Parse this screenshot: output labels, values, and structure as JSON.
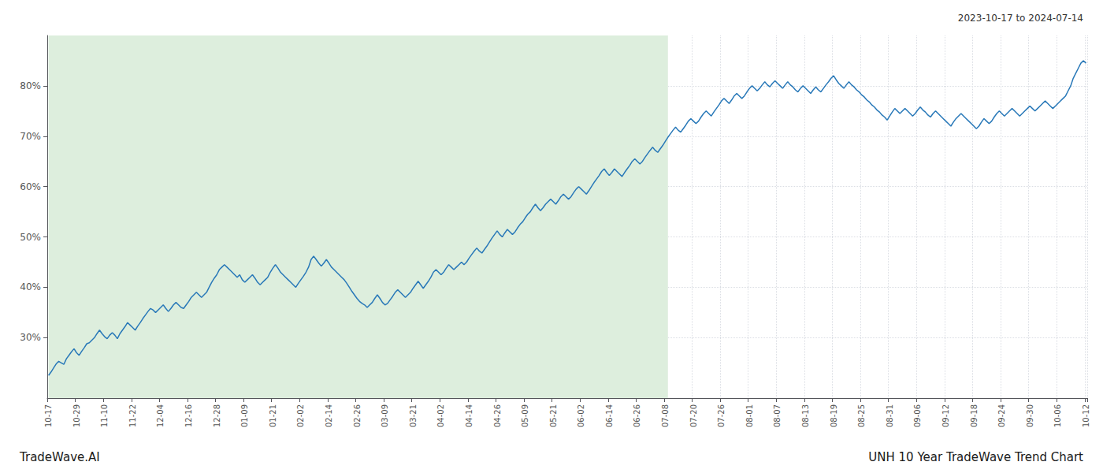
{
  "chart_data": {
    "type": "line",
    "title": "2023-10-17 to 2024-07-14",
    "annotations": [
      "TradeWave.AI",
      "UNH 10 Year TradeWave Trend Chart"
    ],
    "color": "#2878b8",
    "grid": true,
    "shaded_region": {
      "x": [
        0,
        243
      ],
      "color": "#ddeedd"
    },
    "ylim": [
      18,
      90
    ],
    "yticks": [
      {
        "value": 30,
        "label": "30%"
      },
      {
        "value": 40,
        "label": "40%"
      },
      {
        "value": 50,
        "label": "50%"
      },
      {
        "value": 60,
        "label": "60%"
      },
      {
        "value": 70,
        "label": "70%"
      },
      {
        "value": 80,
        "label": "80%"
      }
    ],
    "categories": [
      "10-17",
      null,
      null,
      null,
      null,
      null,
      null,
      null,
      null,
      null,
      null,
      "10-29",
      null,
      null,
      null,
      null,
      null,
      null,
      null,
      null,
      null,
      null,
      "11-10",
      null,
      null,
      null,
      null,
      null,
      null,
      null,
      null,
      null,
      null,
      "11-22",
      null,
      null,
      null,
      null,
      null,
      null,
      null,
      null,
      null,
      null,
      "12-04",
      null,
      null,
      null,
      null,
      null,
      null,
      null,
      null,
      null,
      null,
      "12-16",
      null,
      null,
      null,
      null,
      null,
      null,
      null,
      null,
      null,
      null,
      "12-28",
      null,
      null,
      null,
      null,
      null,
      null,
      null,
      null,
      null,
      null,
      "01-09",
      null,
      null,
      null,
      null,
      null,
      null,
      null,
      null,
      null,
      null,
      "01-21",
      null,
      null,
      null,
      null,
      null,
      null,
      null,
      null,
      null,
      null,
      "02-02",
      null,
      null,
      null,
      null,
      null,
      null,
      null,
      null,
      null,
      null,
      "02-14",
      null,
      null,
      null,
      null,
      null,
      null,
      null,
      null,
      null,
      null,
      "02-26",
      null,
      null,
      null,
      null,
      null,
      null,
      null,
      null,
      null,
      null,
      "03-09",
      null,
      null,
      null,
      null,
      null,
      null,
      null,
      null,
      null,
      null,
      "03-21",
      null,
      null,
      null,
      null,
      null,
      null,
      null,
      null,
      null,
      null,
      "04-02",
      null,
      null,
      null,
      null,
      null,
      null,
      null,
      null,
      null,
      null,
      "04-14",
      null,
      null,
      null,
      null,
      null,
      null,
      null,
      null,
      null,
      null,
      "04-26",
      null,
      null,
      null,
      null,
      null,
      null,
      null,
      null,
      null,
      null,
      "05-09",
      null,
      null,
      null,
      null,
      null,
      null,
      null,
      null,
      null,
      null,
      "05-21",
      null,
      null,
      null,
      null,
      null,
      null,
      null,
      null,
      null,
      null,
      "06-02",
      null,
      null,
      null,
      null,
      null,
      null,
      null,
      null,
      null,
      null,
      "06-14",
      null,
      null,
      null,
      null,
      null,
      null,
      null,
      null,
      null,
      null,
      "06-26",
      null,
      null,
      null,
      null,
      null,
      null,
      null,
      null,
      null,
      null,
      "07-08",
      null,
      null,
      null,
      null,
      null,
      null,
      null,
      null,
      null,
      null,
      "07-20",
      null,
      null,
      null,
      null,
      null,
      null,
      null,
      null,
      null,
      null,
      "07-26",
      null,
      null,
      null,
      null,
      null,
      null,
      null,
      null,
      null,
      null,
      "08-01",
      null,
      null,
      null,
      null,
      null,
      null,
      null,
      null,
      null,
      null,
      "08-07",
      null,
      null,
      null,
      null,
      null,
      null,
      null,
      null,
      null,
      null,
      "08-13",
      null,
      null,
      null,
      null,
      null,
      null,
      null,
      null,
      null,
      null,
      "08-19",
      null,
      null,
      null,
      null,
      null,
      null,
      null,
      null,
      null,
      null,
      "08-25",
      null,
      null,
      null,
      null,
      null,
      null,
      null,
      null,
      null,
      null,
      "08-31",
      null,
      null,
      null,
      null,
      null,
      null,
      null,
      null,
      null,
      null,
      "09-06",
      null,
      null,
      null,
      null,
      null,
      null,
      null,
      null,
      null,
      null,
      "09-12",
      null,
      null,
      null,
      null,
      null,
      null,
      null,
      null,
      null,
      null,
      "09-18",
      null,
      null,
      null,
      null,
      null,
      null,
      null,
      null,
      null,
      null,
      "09-24",
      null,
      null,
      null,
      null,
      null,
      null,
      null,
      null,
      null,
      null,
      "09-30",
      null,
      null,
      null,
      null,
      null,
      null,
      null,
      null,
      null,
      null,
      "10-06",
      null,
      null,
      null,
      null,
      null,
      null,
      null,
      null,
      null,
      null,
      "10-12"
    ],
    "values": [
      22.5,
      23.2,
      24.0,
      24.8,
      25.3,
      25.0,
      24.7,
      25.8,
      26.5,
      27.2,
      27.8,
      27.0,
      26.5,
      27.3,
      28.0,
      28.8,
      29.0,
      29.5,
      30.0,
      30.8,
      31.5,
      30.8,
      30.2,
      29.8,
      30.5,
      31.0,
      30.5,
      29.8,
      30.8,
      31.5,
      32.2,
      33.0,
      32.5,
      32.0,
      31.5,
      32.3,
      33.0,
      33.8,
      34.5,
      35.2,
      35.8,
      35.5,
      35.0,
      35.5,
      36.0,
      36.5,
      35.8,
      35.2,
      35.8,
      36.5,
      37.0,
      36.5,
      36.0,
      35.8,
      36.5,
      37.2,
      38.0,
      38.5,
      39.0,
      38.5,
      38.0,
      38.5,
      39.0,
      40.0,
      41.0,
      41.8,
      42.5,
      43.5,
      44.0,
      44.5,
      44.0,
      43.5,
      43.0,
      42.5,
      42.0,
      42.5,
      41.5,
      41.0,
      41.5,
      42.0,
      42.5,
      41.8,
      41.0,
      40.5,
      41.0,
      41.5,
      42.0,
      43.0,
      43.8,
      44.5,
      43.8,
      43.0,
      42.5,
      42.0,
      41.5,
      41.0,
      40.5,
      40.0,
      40.8,
      41.5,
      42.2,
      43.0,
      44.0,
      45.5,
      46.2,
      45.5,
      44.8,
      44.2,
      44.8,
      45.5,
      44.8,
      44.0,
      43.5,
      43.0,
      42.5,
      42.0,
      41.5,
      40.8,
      40.0,
      39.2,
      38.5,
      37.8,
      37.2,
      36.8,
      36.5,
      36.0,
      36.5,
      37.0,
      37.8,
      38.5,
      37.8,
      37.0,
      36.5,
      36.8,
      37.5,
      38.2,
      39.0,
      39.5,
      39.0,
      38.5,
      38.0,
      38.5,
      39.0,
      39.8,
      40.5,
      41.2,
      40.5,
      39.8,
      40.5,
      41.2,
      42.0,
      43.0,
      43.5,
      43.0,
      42.5,
      43.0,
      43.8,
      44.5,
      44.0,
      43.5,
      44.0,
      44.5,
      45.0,
      44.5,
      45.0,
      45.8,
      46.5,
      47.2,
      47.8,
      47.2,
      46.8,
      47.5,
      48.2,
      49.0,
      49.8,
      50.5,
      51.2,
      50.5,
      50.0,
      50.8,
      51.5,
      51.0,
      50.5,
      51.0,
      51.8,
      52.5,
      53.0,
      53.8,
      54.5,
      55.0,
      55.8,
      56.5,
      55.8,
      55.2,
      55.8,
      56.5,
      57.0,
      57.5,
      57.0,
      56.5,
      57.2,
      58.0,
      58.5,
      58.0,
      57.5,
      58.0,
      58.8,
      59.5,
      60.0,
      59.5,
      59.0,
      58.5,
      59.2,
      60.0,
      60.8,
      61.5,
      62.2,
      63.0,
      63.5,
      62.8,
      62.2,
      62.8,
      63.5,
      63.0,
      62.5,
      62.0,
      62.8,
      63.5,
      64.2,
      65.0,
      65.5,
      65.0,
      64.5,
      65.0,
      65.8,
      66.5,
      67.2,
      67.8,
      67.2,
      66.8,
      67.5,
      68.2,
      69.0,
      69.8,
      70.5,
      71.2,
      71.8,
      71.2,
      70.8,
      71.5,
      72.2,
      73.0,
      73.5,
      73.0,
      72.5,
      73.0,
      73.8,
      74.5,
      75.0,
      74.5,
      74.0,
      74.8,
      75.5,
      76.2,
      77.0,
      77.5,
      77.0,
      76.5,
      77.2,
      78.0,
      78.5,
      78.0,
      77.5,
      78.0,
      78.8,
      79.5,
      80.0,
      79.5,
      79.0,
      79.5,
      80.2,
      80.8,
      80.2,
      79.8,
      80.5,
      81.0,
      80.5,
      80.0,
      79.5,
      80.2,
      80.8,
      80.2,
      79.8,
      79.2,
      78.8,
      79.5,
      80.0,
      79.5,
      79.0,
      78.5,
      79.2,
      79.8,
      79.2,
      78.8,
      79.5,
      80.2,
      80.8,
      81.5,
      82.0,
      81.2,
      80.5,
      80.0,
      79.5,
      80.2,
      80.8,
      80.2,
      79.8,
      79.2,
      78.8,
      78.2,
      77.8,
      77.2,
      76.8,
      76.2,
      75.8,
      75.2,
      74.8,
      74.2,
      73.8,
      73.2,
      74.0,
      74.8,
      75.5,
      75.0,
      74.5,
      75.0,
      75.5,
      75.0,
      74.5,
      74.0,
      74.5,
      75.2,
      75.8,
      75.2,
      74.8,
      74.2,
      73.8,
      74.5,
      75.0,
      74.5,
      74.0,
      73.5,
      73.0,
      72.5,
      72.0,
      72.8,
      73.5,
      74.0,
      74.5,
      74.0,
      73.5,
      73.0,
      72.5,
      72.0,
      71.5,
      72.0,
      72.8,
      73.5,
      73.0,
      72.5,
      73.0,
      73.8,
      74.5,
      75.0,
      74.5,
      74.0,
      74.5,
      75.0,
      75.5,
      75.0,
      74.5,
      74.0,
      74.5,
      75.0,
      75.5,
      76.0,
      75.5,
      75.0,
      75.5,
      76.0,
      76.5,
      77.0,
      76.5,
      76.0,
      75.5,
      76.0,
      76.5,
      77.0,
      77.5,
      78.0,
      79.0,
      80.0,
      81.5,
      82.5,
      83.5,
      84.5,
      85.0,
      84.5
    ]
  }
}
